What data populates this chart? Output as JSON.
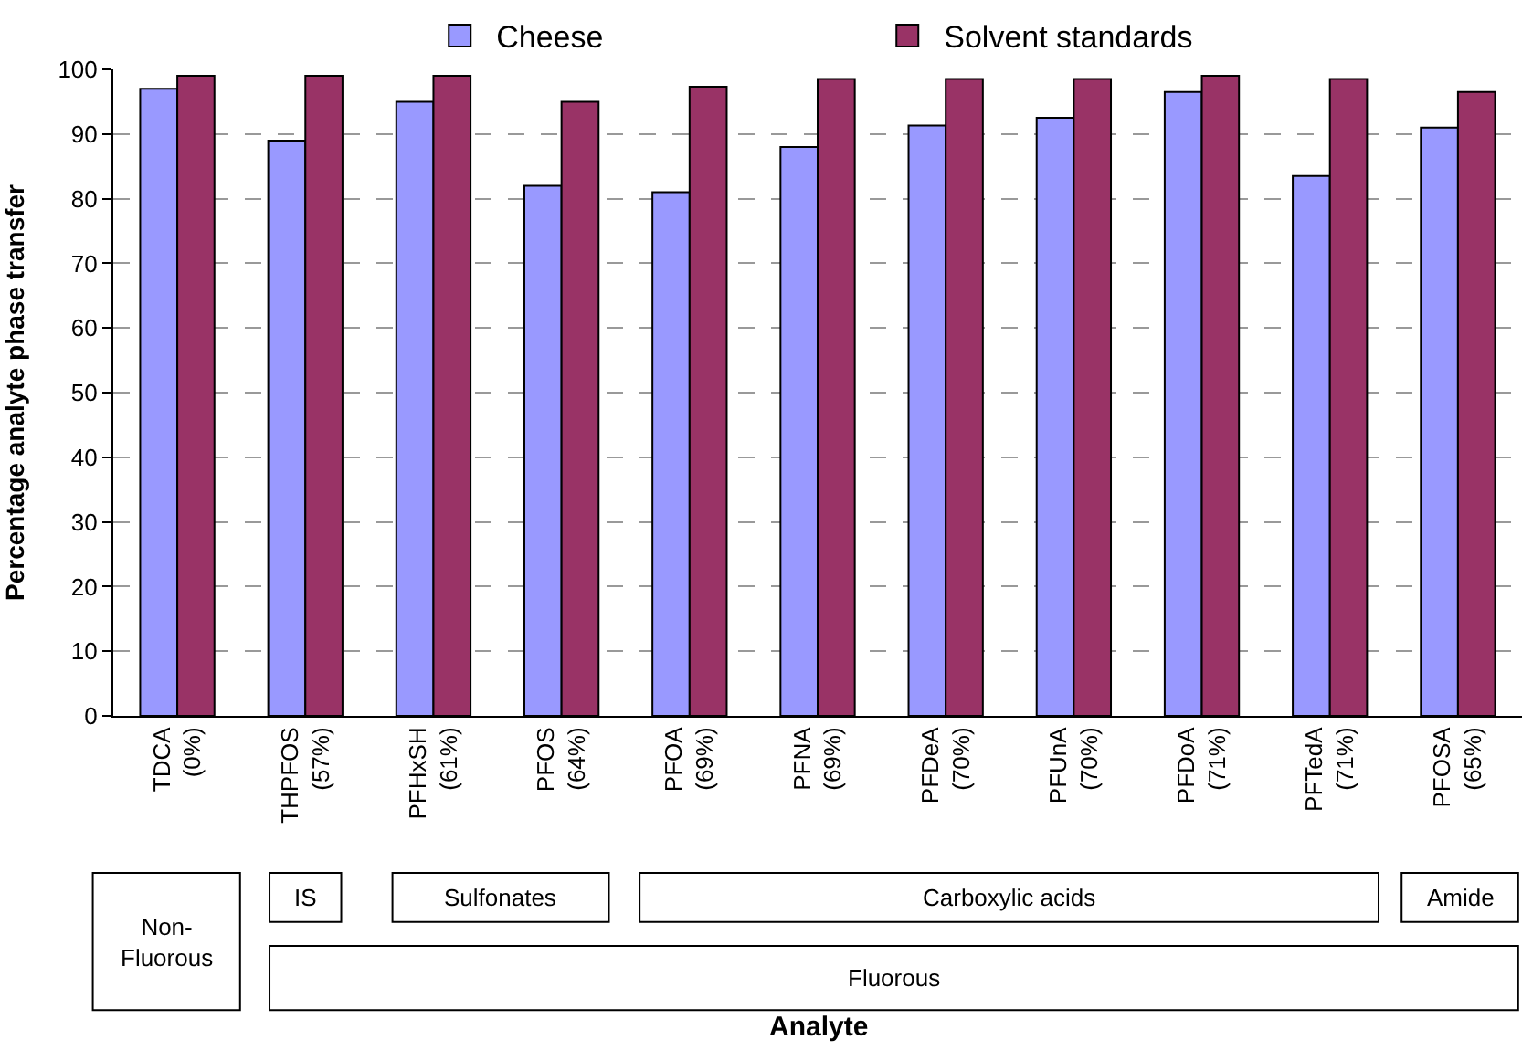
{
  "chart_data": {
    "type": "bar",
    "ylabel": "Percentage analyte phase transfer",
    "categories": [
      "TDCA\n(0%)",
      "THPFOS\n(57%)",
      "PFHxSH\n(61%)",
      "PFOS\n(64%)",
      "PFOA\n(69%)",
      "PFNA\n(69%)",
      "PFDeA\n(70%)",
      "PFUnA\n(70%)",
      "PFDoA\n(71%)",
      "PFTedA\n(71%)",
      "PFOSA\n(65%)"
    ],
    "series": [
      {
        "name": "Cheese",
        "color": "#9999ff",
        "values": [
          97,
          89,
          95,
          82,
          81,
          88,
          91.3,
          92.5,
          96.5,
          83.5,
          91
        ]
      },
      {
        "name": "Solvent standards",
        "color": "#993366",
        "values": [
          99,
          99,
          99,
          95,
          97.3,
          98.5,
          98.5,
          98.5,
          99,
          98.5,
          96.5
        ]
      }
    ],
    "ylim": [
      0,
      100
    ],
    "yticks": [
      0,
      10,
      20,
      30,
      40,
      50,
      60,
      70,
      80,
      90,
      100
    ],
    "grid": "y",
    "legend": "top",
    "annotations": [
      "Non-\nFluorous",
      "IS",
      "Sulfonates",
      "Carboxylic acids",
      "Amide",
      "Fluorous",
      "Analyte"
    ]
  }
}
